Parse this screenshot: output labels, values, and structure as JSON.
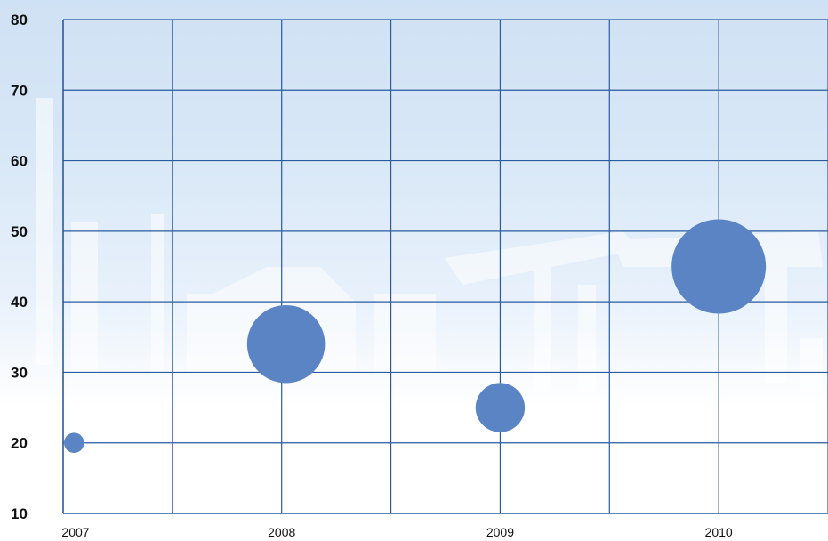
{
  "chart_data": {
    "type": "bubble",
    "x_ticks": [
      "2007",
      "2008",
      "2009",
      "2010"
    ],
    "y_ticks": [
      "10",
      "20",
      "30",
      "40",
      "50",
      "60",
      "70",
      "80"
    ],
    "ylim": [
      10,
      80
    ],
    "xlim": [
      2007,
      2010.5
    ],
    "grid": true,
    "series": [
      {
        "points": [
          {
            "x": 2007.05,
            "y": 20,
            "size": 1
          },
          {
            "x": 2008.02,
            "y": 34,
            "size": 15
          },
          {
            "x": 2009.0,
            "y": 25,
            "size": 6
          },
          {
            "x": 2010.0,
            "y": 45,
            "size": 22
          }
        ]
      }
    ],
    "colors": {
      "bubble": "#5b84c4",
      "grid": "#2a5aa0",
      "background_top": "#cfe1f4",
      "background_bottom": "#ffffff"
    }
  }
}
